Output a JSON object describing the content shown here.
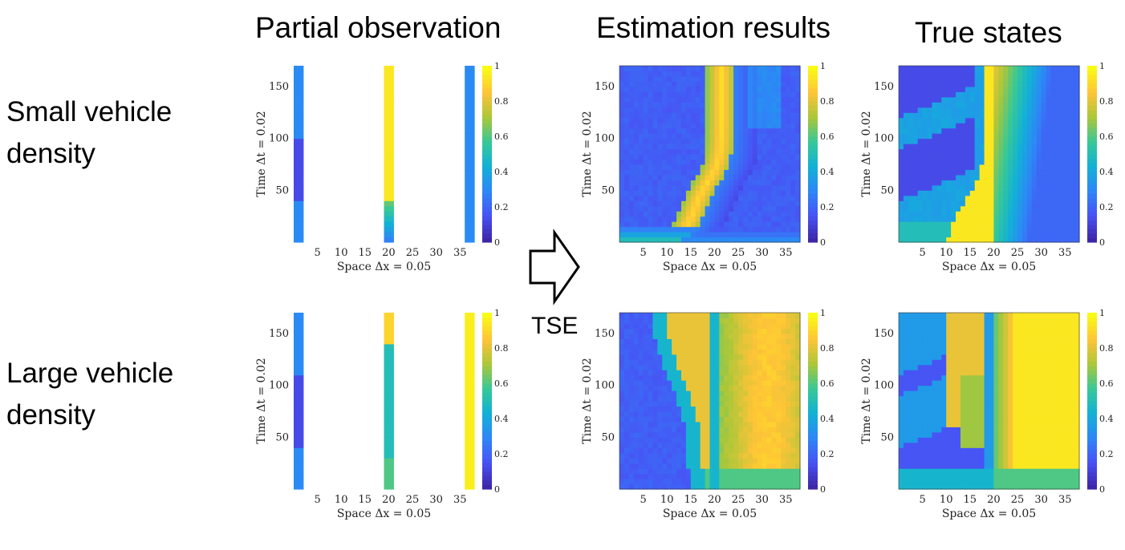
{
  "titles": {
    "partial": "Partial observation",
    "estimation": "Estimation results",
    "true_states": "True states"
  },
  "rows": {
    "small": {
      "line1": "Small vehicle",
      "line2": "density"
    },
    "large": {
      "line1": "Large vehicle",
      "line2": "density"
    }
  },
  "arrow": {
    "label": "TSE"
  },
  "axes": {
    "xlabel": "Space Δx = 0.05",
    "ylabel": "Time Δt = 0.02",
    "xticks": [
      "5",
      "10",
      "15",
      "20",
      "25",
      "30",
      "35"
    ],
    "yticks": [
      "50",
      "100",
      "150"
    ],
    "cbar_ticks": [
      "0",
      "0.2",
      "0.4",
      "0.6",
      "0.8",
      "1"
    ]
  },
  "chart_data": [
    {
      "type": "heatmap",
      "row": "Small vehicle density",
      "column": "Partial observation",
      "xlim": [
        0,
        38
      ],
      "ylim": [
        0,
        170
      ],
      "clim": [
        0,
        1
      ],
      "observed_columns_x": [
        1,
        20,
        37
      ]
    },
    {
      "type": "heatmap",
      "row": "Small vehicle density",
      "column": "Estimation results",
      "xlim": [
        0,
        38
      ],
      "ylim": [
        0,
        170
      ],
      "clim": [
        0,
        1
      ]
    },
    {
      "type": "heatmap",
      "row": "Small vehicle density",
      "column": "True states",
      "xlim": [
        0,
        38
      ],
      "ylim": [
        0,
        170
      ],
      "clim": [
        0,
        1
      ]
    },
    {
      "type": "heatmap",
      "row": "Large vehicle density",
      "column": "Partial observation",
      "xlim": [
        0,
        38
      ],
      "ylim": [
        0,
        170
      ],
      "clim": [
        0,
        1
      ],
      "observed_columns_x": [
        1,
        20,
        37
      ]
    },
    {
      "type": "heatmap",
      "row": "Large vehicle density",
      "column": "Estimation results",
      "xlim": [
        0,
        38
      ],
      "ylim": [
        0,
        170
      ],
      "clim": [
        0,
        1
      ]
    },
    {
      "type": "heatmap",
      "row": "Large vehicle density",
      "column": "True states",
      "xlim": [
        0,
        38
      ],
      "ylim": [
        0,
        170
      ],
      "clim": [
        0,
        1
      ]
    }
  ]
}
